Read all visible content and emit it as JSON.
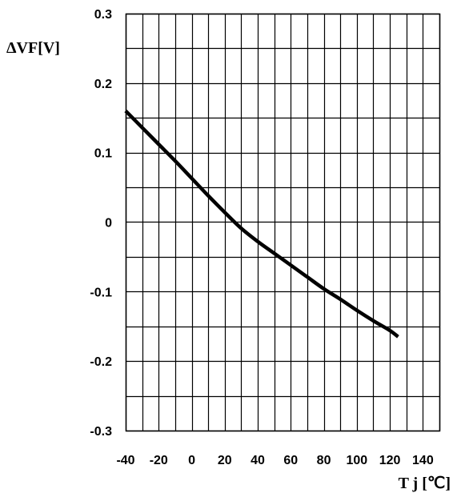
{
  "chart_data": {
    "type": "line",
    "title": "",
    "xlabel": "T j [℃]",
    "ylabel": "ΔVF[V]",
    "xlim": [
      -40,
      150
    ],
    "ylim": [
      -0.3,
      0.3
    ],
    "x_ticks": [
      "-40",
      "-20",
      "0",
      "20",
      "40",
      "60",
      "80",
      "100",
      "120",
      "140"
    ],
    "x_tick_values": [
      -40,
      -20,
      0,
      20,
      40,
      60,
      80,
      100,
      120,
      140
    ],
    "y_ticks": [
      "0.3",
      "0.2",
      "0.1",
      "0",
      "-0.1",
      "-0.2",
      "-0.3"
    ],
    "y_tick_values": [
      0.3,
      0.2,
      0.1,
      0,
      -0.1,
      -0.2,
      -0.3
    ],
    "x_grid_step": 10,
    "y_grid_step": 0.05,
    "grid": true,
    "series": [
      {
        "x": [
          -40,
          -30,
          -20,
          -10,
          0,
          10,
          20,
          30,
          40,
          50,
          60,
          70,
          80,
          90,
          100,
          110,
          120,
          125
        ],
        "y": [
          0.16,
          0.136,
          0.112,
          0.088,
          0.063,
          0.038,
          0.014,
          -0.009,
          -0.028,
          -0.045,
          -0.062,
          -0.079,
          -0.096,
          -0.111,
          -0.127,
          -0.142,
          -0.156,
          -0.165
        ]
      }
    ],
    "colors": {
      "line": "#000000",
      "grid": "#000000",
      "background": "#ffffff"
    }
  }
}
